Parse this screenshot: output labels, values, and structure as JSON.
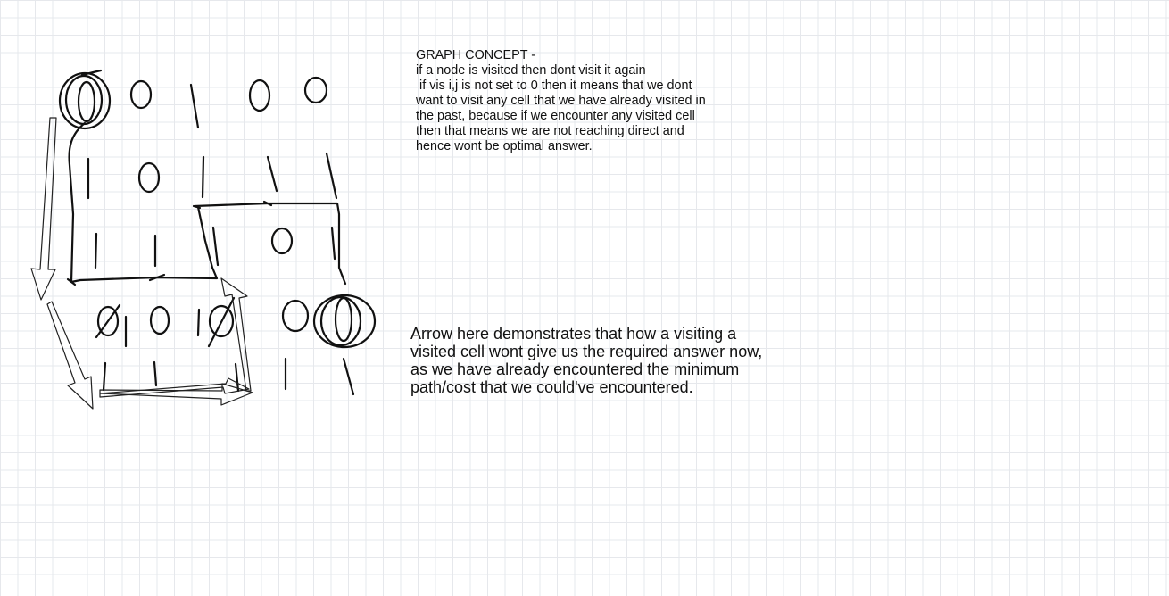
{
  "notes": {
    "graph_concept": {
      "heading": "GRAPH CONCEPT -",
      "lines": [
        "if a node is visited then dont visit it again",
        " if vis i,j is not set to 0 then it means that we dont",
        "want to visit any cell that we have already visited in",
        "the past, because if we encounter any visited cell",
        "then that means we are not reaching direct and",
        "hence wont be optimal answer."
      ]
    },
    "arrow_explanation": {
      "lines": [
        "Arrow here demonstrates that how a visiting a",
        "visited cell wont give us the required answer now,",
        "as we have already encountered the minimum",
        "path/cost that we could've encountered."
      ]
    }
  },
  "grid": {
    "rows": [
      [
        "0",
        "0",
        "1",
        "0",
        "0"
      ],
      [
        "1",
        "0",
        "1",
        "1",
        "1"
      ],
      [
        "1",
        "1",
        "1",
        "0",
        "1"
      ],
      [
        "0",
        "0",
        "1",
        "0",
        "0"
      ],
      [
        "1",
        "1",
        "1",
        "1",
        "1"
      ]
    ],
    "highlighted_cells": [
      "0,0",
      "3,4"
    ],
    "crossed_cells": [
      "3,0",
      "3,2"
    ]
  },
  "colors": {
    "ink": "#111111",
    "grid_line": "#e6e8ec",
    "background": "#ffffff"
  }
}
